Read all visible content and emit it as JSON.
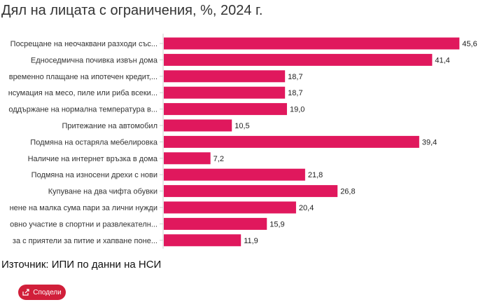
{
  "title": "Дял на лицата с ограничения, %, 2024 г.",
  "source": "Източник: ИПИ по данни на НСИ",
  "share_label": "Сподели",
  "colors": {
    "bar": "#e0185d",
    "grid": "#cfcfcf",
    "share_button": "#d11f3a"
  },
  "chart_data": {
    "type": "bar",
    "orientation": "horizontal",
    "categories": [
      "Посрещане на неочаквани разходи със...",
      "Едноседмична почивка извън дома",
      "временно плащане на ипотечен кредит,...",
      "нсумация на месо, пиле или риба всеки...",
      "оддържане на нормална температура в...",
      "Притежание на автомобил",
      "Подмяна на остаряла мебелировка",
      "Наличие на интернет връзка в дома",
      "Подмяна на износени дрехи с нови",
      "Купуване на два чифта обувки",
      "нене на малка сума пари за лични нужди",
      "овно участие в спортни и развлекателн...",
      "за с приятели за питие и хапване поне..."
    ],
    "values": [
      45.6,
      41.4,
      18.7,
      18.7,
      19.0,
      10.5,
      39.4,
      7.2,
      21.8,
      26.8,
      20.4,
      15.9,
      11.9
    ],
    "value_labels": [
      "45,6",
      "41,4",
      "18,7",
      "18,7",
      "19,0",
      "10,5",
      "39,4",
      "7,2",
      "21,8",
      "26,8",
      "20,4",
      "15,9",
      "11,9"
    ],
    "xlim": [
      0,
      46
    ],
    "grid": false,
    "legend": "none"
  }
}
